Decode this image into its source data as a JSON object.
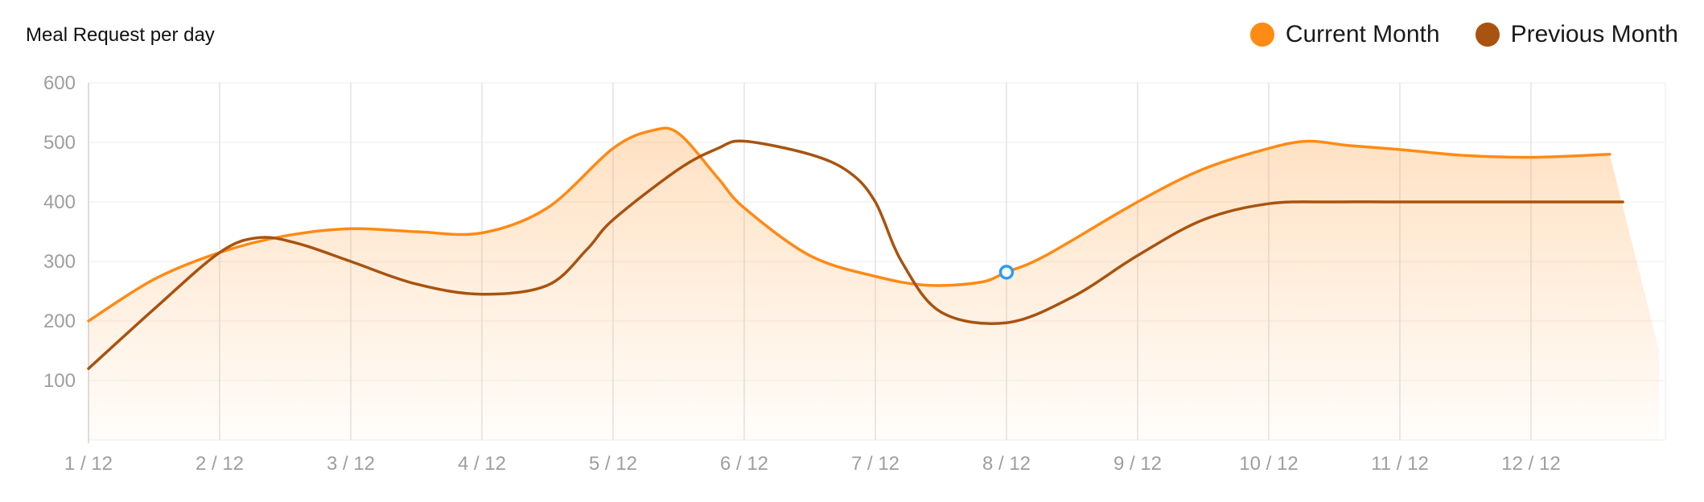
{
  "chart_data": {
    "type": "line",
    "title": "Meal Request per day",
    "categories": [
      "1 / 12",
      "2 / 12",
      "3 / 12",
      "4 / 12",
      "5 / 12",
      "6 / 12",
      "7 / 12",
      "8 / 12",
      "9 / 12",
      "10 / 12",
      "11 / 12",
      "12 / 12"
    ],
    "y_ticks": [
      100,
      200,
      300,
      400,
      500,
      600
    ],
    "ylim": [
      0,
      600
    ],
    "grid": true,
    "legend_position": "top-right",
    "series": [
      {
        "name": "Current Month",
        "color": "#FF8A14",
        "filled": true,
        "points": [
          [
            0,
            200
          ],
          [
            0.5,
            270
          ],
          [
            1,
            315
          ],
          [
            1.5,
            343
          ],
          [
            2,
            355
          ],
          [
            2.5,
            350
          ],
          [
            3,
            348
          ],
          [
            3.5,
            390
          ],
          [
            4,
            490
          ],
          [
            4.3,
            520
          ],
          [
            4.5,
            515
          ],
          [
            4.8,
            440
          ],
          [
            5,
            390
          ],
          [
            5.5,
            310
          ],
          [
            6,
            275
          ],
          [
            6.4,
            260
          ],
          [
            6.8,
            265
          ],
          [
            7,
            282
          ],
          [
            7.3,
            310
          ],
          [
            8,
            400
          ],
          [
            8.5,
            455
          ],
          [
            9,
            490
          ],
          [
            9.3,
            502
          ],
          [
            9.6,
            495
          ],
          [
            10,
            488
          ],
          [
            10.5,
            478
          ],
          [
            11,
            475
          ],
          [
            11.6,
            480
          ]
        ]
      },
      {
        "name": "Previous Month",
        "color": "#A8530F",
        "filled": false,
        "points": [
          [
            0,
            120
          ],
          [
            0.5,
            220
          ],
          [
            1,
            315
          ],
          [
            1.3,
            340
          ],
          [
            1.6,
            330
          ],
          [
            2,
            300
          ],
          [
            2.5,
            262
          ],
          [
            3,
            245
          ],
          [
            3.5,
            260
          ],
          [
            3.8,
            320
          ],
          [
            4,
            370
          ],
          [
            4.5,
            455
          ],
          [
            4.8,
            490
          ],
          [
            5,
            502
          ],
          [
            5.5,
            480
          ],
          [
            5.8,
            450
          ],
          [
            6,
            400
          ],
          [
            6.2,
            300
          ],
          [
            6.5,
            215
          ],
          [
            7,
            197
          ],
          [
            7.5,
            240
          ],
          [
            8,
            310
          ],
          [
            8.5,
            370
          ],
          [
            9,
            397
          ],
          [
            9.5,
            400
          ],
          [
            10,
            400
          ],
          [
            11,
            400
          ],
          [
            11.7,
            400
          ]
        ]
      }
    ],
    "highlight": {
      "series": "Current Month",
      "x": 7,
      "y": 282,
      "color": "#2A9DF4"
    }
  }
}
